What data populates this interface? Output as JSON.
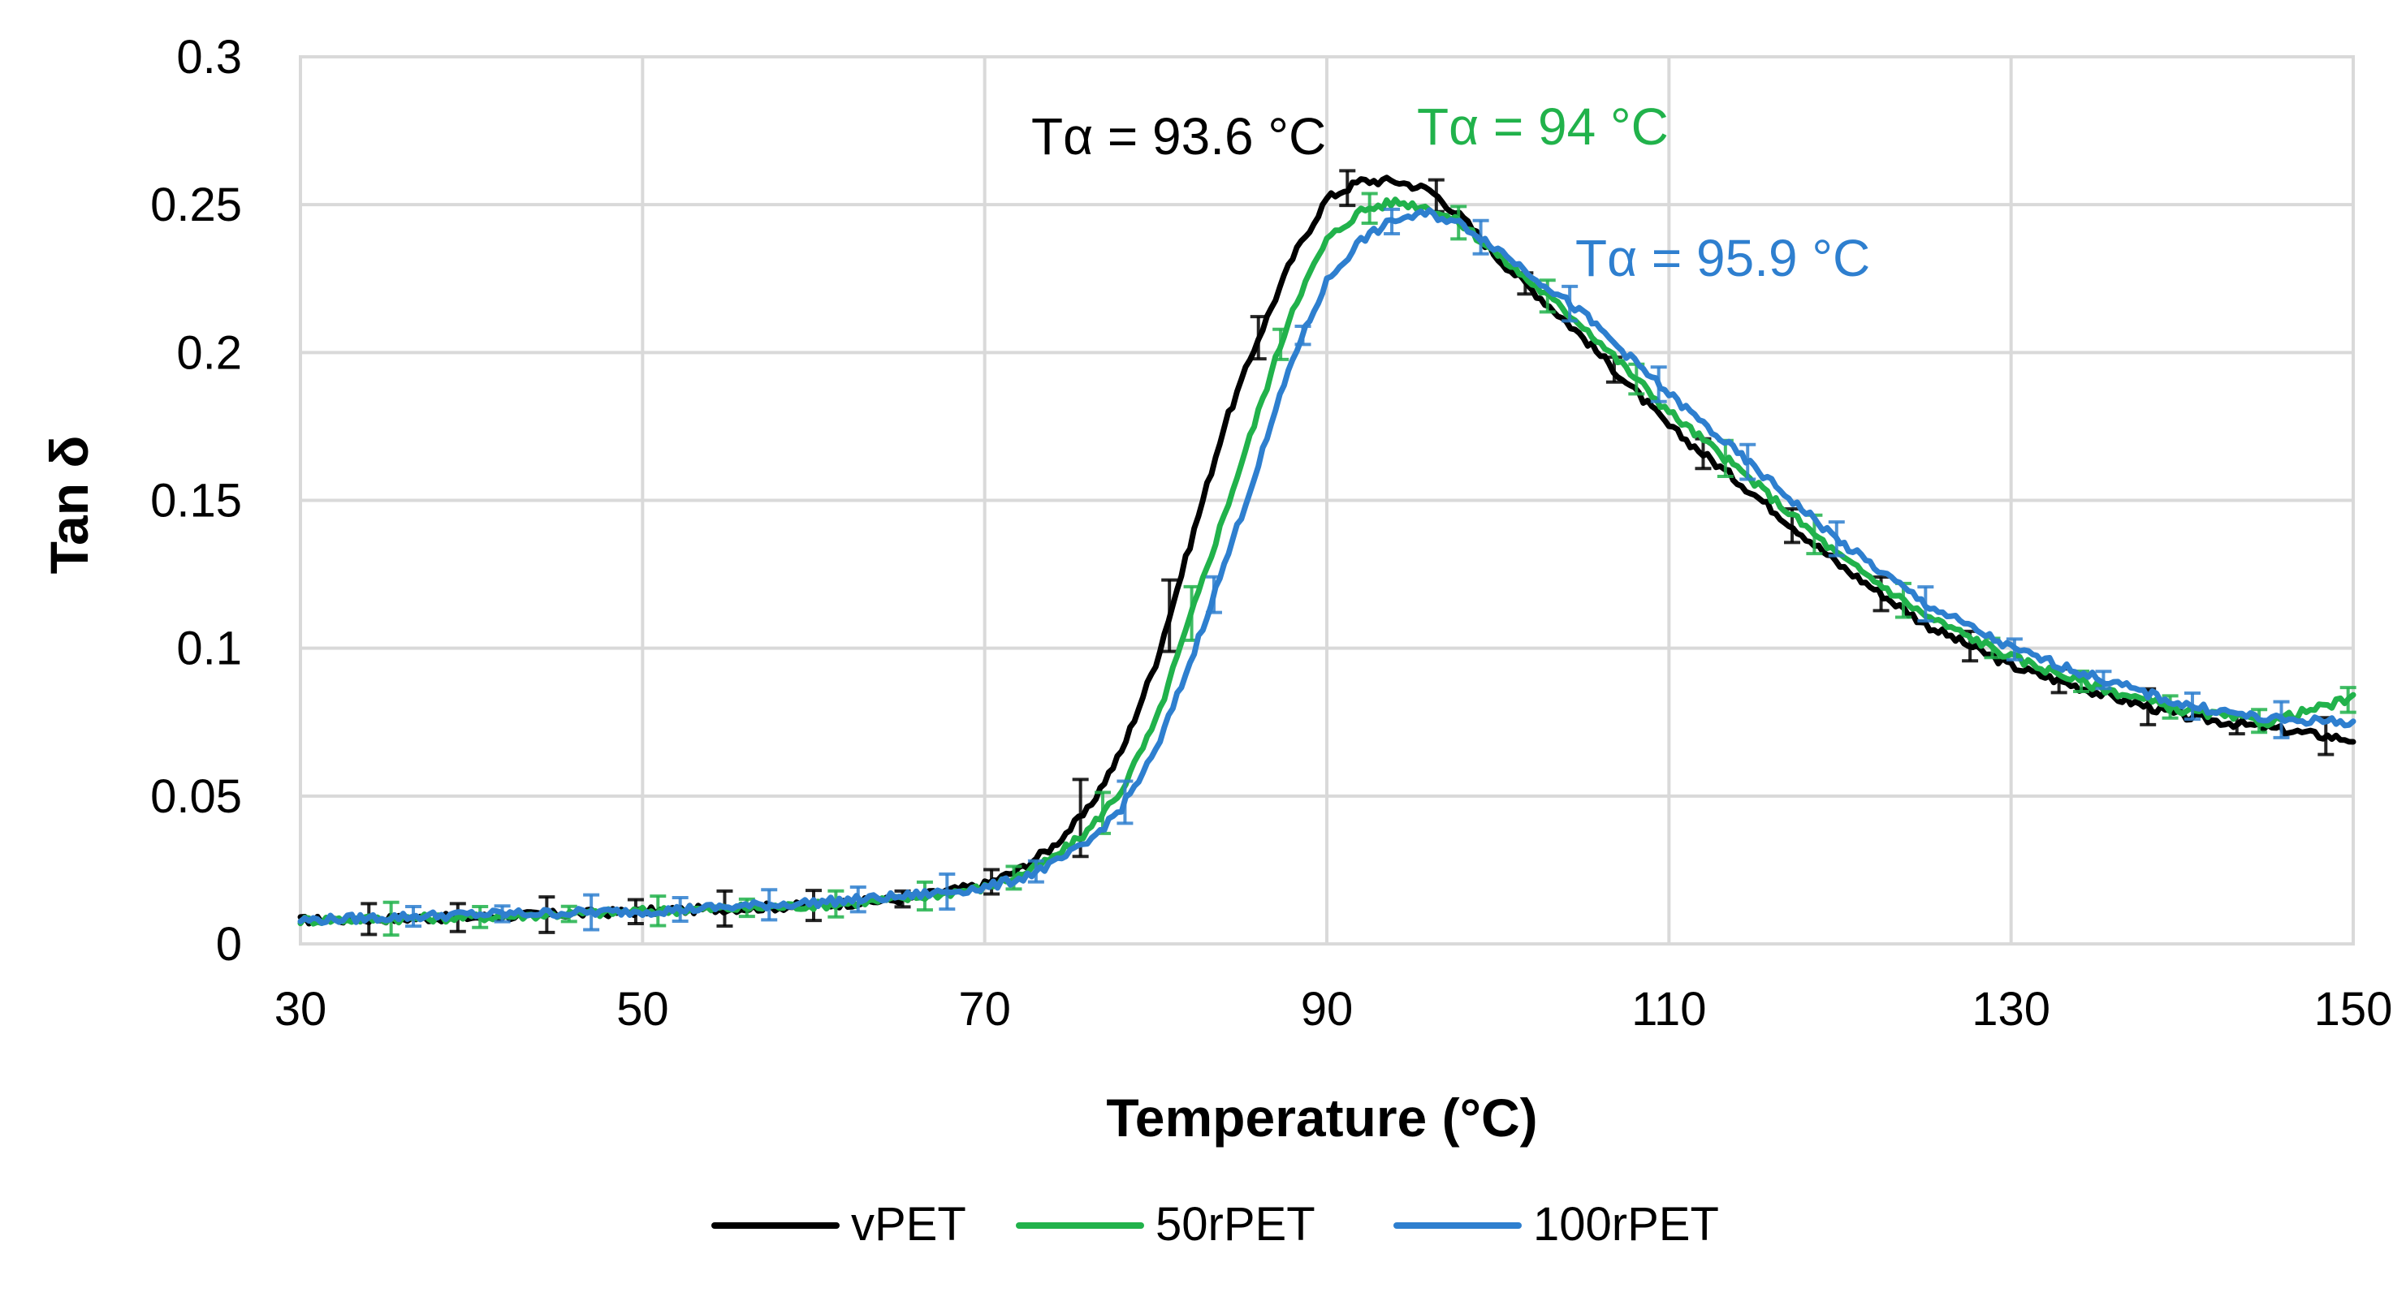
{
  "chart_data": {
    "type": "line",
    "title": "",
    "xlabel": "Temperature (°C)",
    "ylabel": "Tan δ",
    "xlim": [
      30,
      150
    ],
    "ylim": [
      0,
      0.3
    ],
    "x_ticks": [
      30,
      50,
      70,
      90,
      110,
      130,
      150
    ],
    "x_tick_labels": [
      "30",
      "50",
      "70",
      "90",
      "110",
      "130",
      "150"
    ],
    "y_ticks": [
      0,
      0.05,
      0.1,
      0.15,
      0.2,
      0.25,
      0.3
    ],
    "y_tick_labels": [
      "0",
      "0.05",
      "0.1",
      "0.15",
      "0.2",
      "0.25",
      "0.3"
    ],
    "grid": true,
    "legend_position": "bottom",
    "series": [
      {
        "name": "vPET",
        "color": "#000000",
        "x": [
          30,
          40,
          50,
          60,
          65,
          70,
          72,
          74,
          76,
          78,
          80,
          82,
          84,
          86,
          88,
          90,
          92,
          94,
          96,
          98,
          100,
          105,
          110,
          115,
          120,
          125,
          130,
          135,
          140,
          145,
          150
        ],
        "y": [
          0.008,
          0.009,
          0.011,
          0.013,
          0.015,
          0.02,
          0.025,
          0.033,
          0.045,
          0.065,
          0.095,
          0.135,
          0.175,
          0.205,
          0.232,
          0.252,
          0.258,
          0.258,
          0.255,
          0.245,
          0.232,
          0.205,
          0.175,
          0.152,
          0.128,
          0.108,
          0.094,
          0.085,
          0.077,
          0.073,
          0.069
        ]
      },
      {
        "name": "50rPET",
        "color": "#21b24b",
        "x": [
          30,
          40,
          50,
          60,
          65,
          70,
          72,
          74,
          76,
          78,
          80,
          82,
          84,
          86,
          88,
          90,
          92,
          94,
          96,
          98,
          100,
          105,
          110,
          115,
          120,
          125,
          130,
          135,
          140,
          145,
          150
        ],
        "y": [
          0.008,
          0.009,
          0.011,
          0.013,
          0.015,
          0.019,
          0.023,
          0.029,
          0.038,
          0.052,
          0.075,
          0.11,
          0.145,
          0.18,
          0.215,
          0.238,
          0.248,
          0.251,
          0.249,
          0.243,
          0.233,
          0.209,
          0.18,
          0.156,
          0.131,
          0.111,
          0.097,
          0.087,
          0.079,
          0.075,
          0.083
        ]
      },
      {
        "name": "100rPET",
        "color": "#2e7fcf",
        "x": [
          30,
          40,
          50,
          60,
          65,
          70,
          72,
          74,
          76,
          78,
          80,
          82,
          84,
          86,
          88,
          90,
          92,
          94,
          96,
          98,
          100,
          105,
          110,
          115,
          120,
          125,
          130,
          135,
          140,
          145,
          150
        ],
        "y": [
          0.008,
          0.01,
          0.011,
          0.014,
          0.016,
          0.019,
          0.022,
          0.027,
          0.034,
          0.046,
          0.065,
          0.095,
          0.128,
          0.162,
          0.198,
          0.224,
          0.238,
          0.245,
          0.247,
          0.243,
          0.235,
          0.213,
          0.186,
          0.161,
          0.136,
          0.115,
          0.1,
          0.09,
          0.081,
          0.076,
          0.075
        ]
      }
    ],
    "annotations": [
      {
        "text": "Tα = 93.6 °C",
        "x": 93.6,
        "color": "#000000"
      },
      {
        "text": "Tα = 94 °C",
        "x": 94,
        "color": "#21b24b"
      },
      {
        "text": "Tα = 95.9 °C",
        "x": 95.9,
        "color": "#2e7fcf"
      }
    ]
  }
}
